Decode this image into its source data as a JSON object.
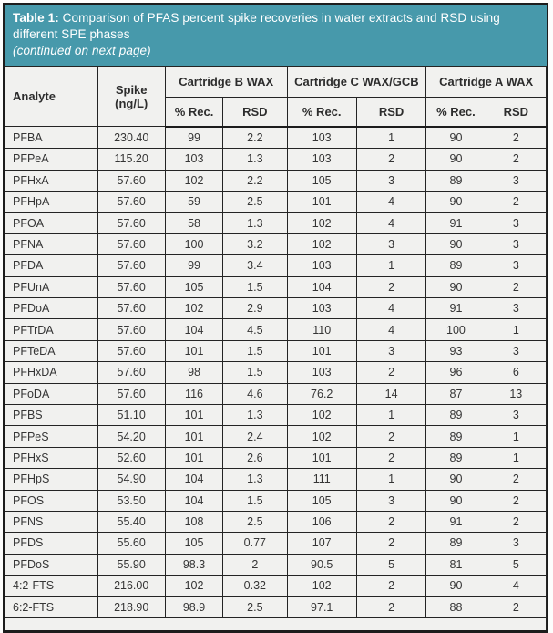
{
  "title": {
    "band_color": "#4799ab",
    "label_bold": "Table 1:",
    "label_rest": " Comparison of PFAS percent spike recoveries in water extracts and RSD using different SPE phases",
    "continued": "(continued on next page)"
  },
  "table": {
    "columns": {
      "analyte": "Analyte",
      "spike_line1": "Spike",
      "spike_line2": "(ng/L)",
      "groups": [
        {
          "label": "Cartridge B WAX"
        },
        {
          "label": "Cartridge C WAX/GCB"
        },
        {
          "label": "Cartridge A WAX"
        }
      ],
      "sub": {
        "rec": "% Rec.",
        "rsd": "RSD"
      }
    },
    "rows": [
      {
        "analyte": "PFBA",
        "spike": "230.40",
        "b_rec": "99",
        "b_rsd": "2.2",
        "c_rec": "103",
        "c_rsd": "1",
        "a_rec": "90",
        "a_rsd": "2"
      },
      {
        "analyte": "PFPeA",
        "spike": "115.20",
        "b_rec": "103",
        "b_rsd": "1.3",
        "c_rec": "103",
        "c_rsd": "2",
        "a_rec": "90",
        "a_rsd": "2"
      },
      {
        "analyte": "PFHxA",
        "spike": "57.60",
        "b_rec": "102",
        "b_rsd": "2.2",
        "c_rec": "105",
        "c_rsd": "3",
        "a_rec": "89",
        "a_rsd": "3"
      },
      {
        "analyte": "PFHpA",
        "spike": "57.60",
        "b_rec": "59",
        "b_rsd": "2.5",
        "c_rec": "101",
        "c_rsd": "4",
        "a_rec": "90",
        "a_rsd": "2"
      },
      {
        "analyte": "PFOA",
        "spike": "57.60",
        "b_rec": "58",
        "b_rsd": "1.3",
        "c_rec": "102",
        "c_rsd": "4",
        "a_rec": "91",
        "a_rsd": "3"
      },
      {
        "analyte": "PFNA",
        "spike": "57.60",
        "b_rec": "100",
        "b_rsd": "3.2",
        "c_rec": "102",
        "c_rsd": "3",
        "a_rec": "90",
        "a_rsd": "3"
      },
      {
        "analyte": "PFDA",
        "spike": "57.60",
        "b_rec": "99",
        "b_rsd": "3.4",
        "c_rec": "103",
        "c_rsd": "1",
        "a_rec": "89",
        "a_rsd": "3"
      },
      {
        "analyte": "PFUnA",
        "spike": "57.60",
        "b_rec": "105",
        "b_rsd": "1.5",
        "c_rec": "104",
        "c_rsd": "2",
        "a_rec": "90",
        "a_rsd": "2"
      },
      {
        "analyte": "PFDoA",
        "spike": "57.60",
        "b_rec": "102",
        "b_rsd": "2.9",
        "c_rec": "103",
        "c_rsd": "4",
        "a_rec": "91",
        "a_rsd": "3"
      },
      {
        "analyte": "PFTrDA",
        "spike": "57.60",
        "b_rec": "104",
        "b_rsd": "4.5",
        "c_rec": "110",
        "c_rsd": "4",
        "a_rec": "100",
        "a_rsd": "1"
      },
      {
        "analyte": "PFTeDA",
        "spike": "57.60",
        "b_rec": "101",
        "b_rsd": "1.5",
        "c_rec": "101",
        "c_rsd": "3",
        "a_rec": "93",
        "a_rsd": "3"
      },
      {
        "analyte": "PFHxDA",
        "spike": "57.60",
        "b_rec": "98",
        "b_rsd": "1.5",
        "c_rec": "103",
        "c_rsd": "2",
        "a_rec": "96",
        "a_rsd": "6"
      },
      {
        "analyte": "PFoDA",
        "spike": "57.60",
        "b_rec": "116",
        "b_rsd": "4.6",
        "c_rec": "76.2",
        "c_rsd": "14",
        "a_rec": "87",
        "a_rsd": "13"
      },
      {
        "analyte": "PFBS",
        "spike": "51.10",
        "b_rec": "101",
        "b_rsd": "1.3",
        "c_rec": "102",
        "c_rsd": "1",
        "a_rec": "89",
        "a_rsd": "3"
      },
      {
        "analyte": "PFPeS",
        "spike": "54.20",
        "b_rec": "101",
        "b_rsd": "2.4",
        "c_rec": "102",
        "c_rsd": "2",
        "a_rec": "89",
        "a_rsd": "1"
      },
      {
        "analyte": "PFHxS",
        "spike": "52.60",
        "b_rec": "101",
        "b_rsd": "2.6",
        "c_rec": "101",
        "c_rsd": "2",
        "a_rec": "89",
        "a_rsd": "1"
      },
      {
        "analyte": "PFHpS",
        "spike": "54.90",
        "b_rec": "104",
        "b_rsd": "1.3",
        "c_rec": "111",
        "c_rsd": "1",
        "a_rec": "90",
        "a_rsd": "2"
      },
      {
        "analyte": "PFOS",
        "spike": "53.50",
        "b_rec": "104",
        "b_rsd": "1.5",
        "c_rec": "105",
        "c_rsd": "3",
        "a_rec": "90",
        "a_rsd": "2"
      },
      {
        "analyte": "PFNS",
        "spike": "55.40",
        "b_rec": "108",
        "b_rsd": "2.5",
        "c_rec": "106",
        "c_rsd": "2",
        "a_rec": "91",
        "a_rsd": "2"
      },
      {
        "analyte": "PFDS",
        "spike": "55.60",
        "b_rec": "105",
        "b_rsd": "0.77",
        "c_rec": "107",
        "c_rsd": "2",
        "a_rec": "89",
        "a_rsd": "3"
      },
      {
        "analyte": "PFDoS",
        "spike": "55.90",
        "b_rec": "98.3",
        "b_rsd": "2",
        "c_rec": "90.5",
        "c_rsd": "5",
        "a_rec": "81",
        "a_rsd": "5"
      },
      {
        "analyte": "4:2-FTS",
        "spike": "216.00",
        "b_rec": "102",
        "b_rsd": "0.32",
        "c_rec": "102",
        "c_rsd": "2",
        "a_rec": "90",
        "a_rsd": "4"
      },
      {
        "analyte": "6:2-FTS",
        "spike": "218.90",
        "b_rec": "98.9",
        "b_rsd": "2.5",
        "c_rec": "97.1",
        "c_rsd": "2",
        "a_rec": "88",
        "a_rsd": "2"
      }
    ]
  }
}
